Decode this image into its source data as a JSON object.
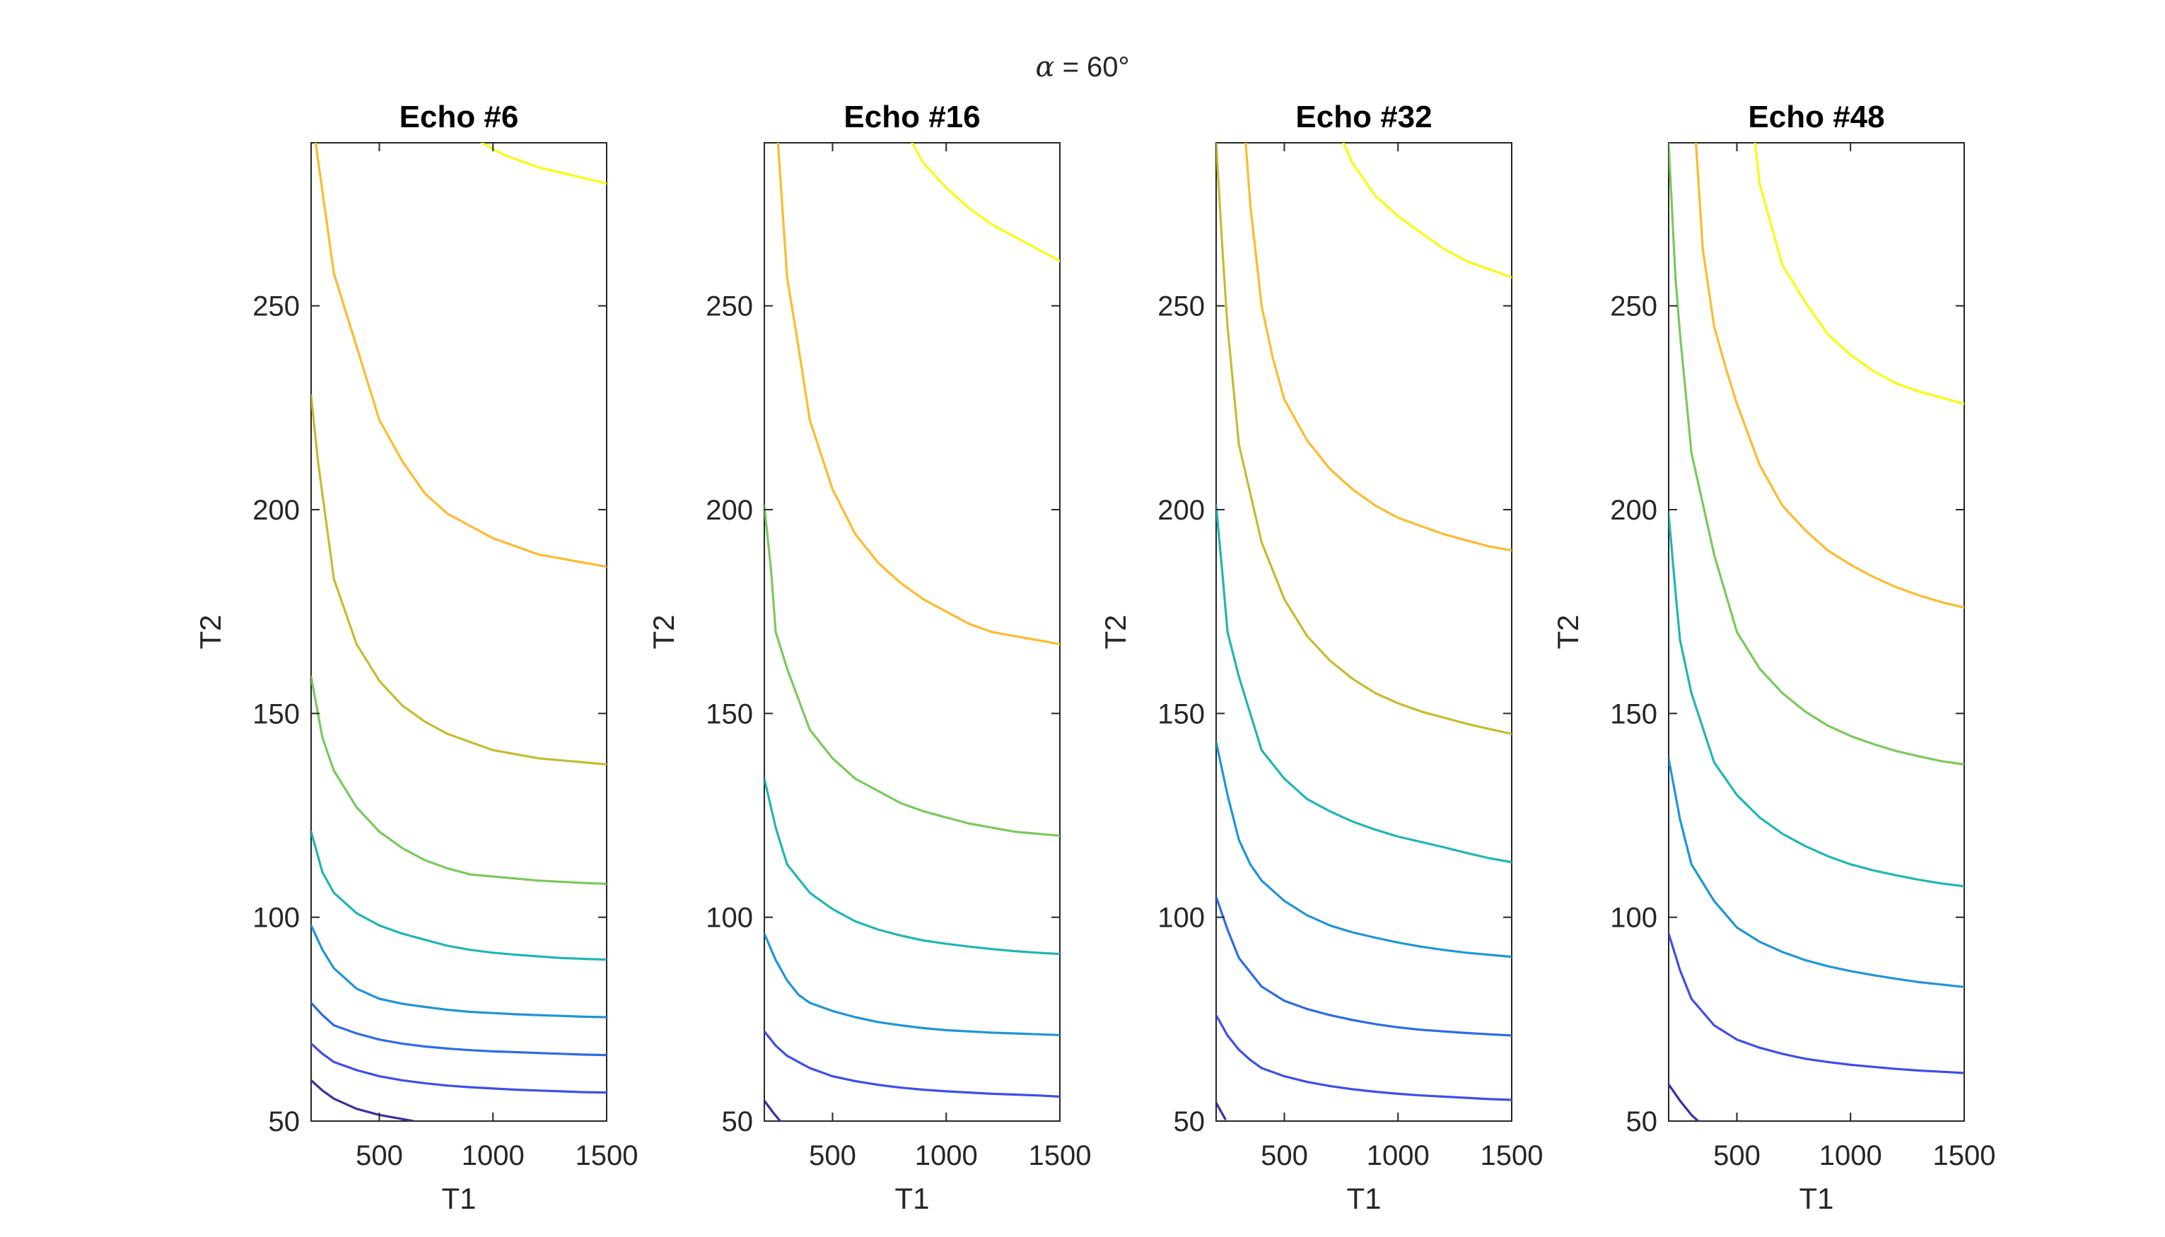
{
  "figure": {
    "suptitle_symbol": "α",
    "suptitle_rest": " = 60°"
  },
  "chart_data": [
    {
      "type": "line",
      "title": "Echo #6",
      "xlabel": "T1",
      "ylabel": "T2",
      "xlim": [
        200,
        1500
      ],
      "ylim": [
        50,
        290
      ],
      "xticks": [
        500,
        1000,
        1500
      ],
      "yticks": [
        50,
        100,
        150,
        200,
        250
      ],
      "grid": false,
      "series": [
        {
          "color": "#f9fb0e",
          "x": [
            950,
            1050,
            1200,
            1350,
            1500
          ],
          "y": [
            290,
            287,
            284,
            282,
            280
          ]
        },
        {
          "color": "#fdbb2d",
          "x": [
            220,
            250,
            300,
            400,
            500,
            600,
            700,
            800,
            900,
            1000,
            1100,
            1200,
            1300,
            1400,
            1500
          ],
          "y": [
            290,
            278,
            258,
            240,
            222,
            212,
            204,
            199,
            196,
            193,
            191,
            189,
            188,
            187,
            186
          ]
        },
        {
          "color": "#c6bc2f",
          "x": [
            200,
            230,
            300,
            400,
            500,
            600,
            700,
            800,
            900,
            1000,
            1100,
            1200,
            1300,
            1400,
            1500
          ],
          "y": [
            228,
            212,
            183,
            167,
            158,
            152,
            148,
            145,
            143,
            141,
            140,
            139,
            138.5,
            138,
            137.5
          ]
        },
        {
          "color": "#7ac95c",
          "x": [
            200,
            250,
            300,
            400,
            500,
            600,
            700,
            800,
            900,
            1000,
            1100,
            1200,
            1300,
            1400,
            1500
          ],
          "y": [
            159,
            144,
            136,
            127,
            121,
            117,
            114,
            112,
            110.5,
            110,
            109.5,
            109,
            108.7,
            108.4,
            108.2
          ]
        },
        {
          "color": "#1fb6b5",
          "x": [
            200,
            250,
            300,
            400,
            500,
            600,
            700,
            800,
            900,
            1000,
            1100,
            1200,
            1300,
            1400,
            1500
          ],
          "y": [
            121,
            111,
            106,
            101,
            98,
            96,
            94.5,
            93,
            92,
            91.3,
            90.8,
            90.4,
            90,
            89.8,
            89.6
          ]
        },
        {
          "color": "#1f95d8",
          "x": [
            200,
            250,
            300,
            400,
            500,
            600,
            700,
            800,
            900,
            1000,
            1100,
            1200,
            1300,
            1400,
            1500
          ],
          "y": [
            98,
            92,
            87.5,
            82.5,
            80,
            78.8,
            78,
            77.3,
            76.8,
            76.5,
            76.2,
            76,
            75.8,
            75.6,
            75.5
          ]
        },
        {
          "color": "#2c6ce6",
          "x": [
            200,
            250,
            300,
            400,
            500,
            600,
            700,
            800,
            900,
            1000,
            1100,
            1200,
            1300,
            1400,
            1500
          ],
          "y": [
            79,
            76,
            73.5,
            71.5,
            70,
            69,
            68.3,
            67.8,
            67.4,
            67.1,
            66.9,
            66.7,
            66.5,
            66.3,
            66.2
          ]
        },
        {
          "color": "#3e4ee8",
          "x": [
            200,
            250,
            300,
            400,
            500,
            600,
            700,
            800,
            900,
            1000,
            1100,
            1200,
            1300,
            1400,
            1500
          ],
          "y": [
            69,
            66.5,
            64.5,
            62.5,
            61,
            60,
            59.3,
            58.7,
            58.3,
            58,
            57.7,
            57.5,
            57.3,
            57.1,
            57
          ]
        },
        {
          "color": "#3c2ea0",
          "x": [
            200,
            250,
            300,
            400,
            500,
            600,
            650
          ],
          "y": [
            60,
            57.5,
            55.5,
            53,
            51.5,
            50.5,
            50
          ]
        }
      ]
    },
    {
      "type": "line",
      "title": "Echo #16",
      "xlabel": "T1",
      "ylabel": "T2",
      "xlim": [
        200,
        1500
      ],
      "ylim": [
        50,
        290
      ],
      "xticks": [
        500,
        1000,
        1500
      ],
      "yticks": [
        50,
        100,
        150,
        200,
        250
      ],
      "grid": false,
      "series": [
        {
          "color": "#f9fb0e",
          "x": [
            850,
            900,
            1000,
            1100,
            1200,
            1300,
            1400,
            1500
          ],
          "y": [
            290,
            285,
            279,
            274,
            270,
            267,
            264,
            261
          ]
        },
        {
          "color": "#fdbb2d",
          "x": [
            260,
            300,
            350,
            400,
            500,
            600,
            700,
            800,
            900,
            1000,
            1100,
            1200,
            1300,
            1400,
            1500
          ],
          "y": [
            290,
            257,
            240,
            222,
            205,
            194,
            187,
            182,
            178,
            175,
            172,
            170,
            169,
            168,
            167
          ]
        },
        {
          "color": "#7ac95c",
          "x": [
            200,
            230,
            250,
            300,
            400,
            500,
            600,
            700,
            800,
            900,
            1000,
            1100,
            1200,
            1300,
            1400,
            1500
          ],
          "y": [
            201,
            185,
            170,
            161,
            146,
            139,
            134,
            131,
            128,
            126,
            124.5,
            123,
            122,
            121,
            120.5,
            120
          ]
        },
        {
          "color": "#1fb6b5",
          "x": [
            200,
            250,
            300,
            400,
            500,
            600,
            700,
            800,
            900,
            1000,
            1100,
            1200,
            1300,
            1400,
            1500
          ],
          "y": [
            134,
            122,
            113,
            106,
            102,
            99,
            97,
            95.5,
            94.3,
            93.5,
            92.8,
            92.2,
            91.7,
            91.3,
            91
          ]
        },
        {
          "color": "#1f95d8",
          "x": [
            200,
            250,
            300,
            350,
            400,
            500,
            600,
            700,
            800,
            900,
            1000,
            1100,
            1200,
            1300,
            1400,
            1500
          ],
          "y": [
            96,
            89.5,
            84.5,
            81,
            79,
            77,
            75.5,
            74.3,
            73.5,
            72.8,
            72.3,
            72,
            71.7,
            71.5,
            71.3,
            71.1
          ]
        },
        {
          "color": "#3e4ee8",
          "x": [
            200,
            250,
            300,
            400,
            500,
            600,
            700,
            800,
            900,
            1000,
            1100,
            1200,
            1300,
            1400,
            1500
          ],
          "y": [
            72,
            68.5,
            66,
            63,
            61,
            59.8,
            58.9,
            58.2,
            57.7,
            57.3,
            57,
            56.7,
            56.5,
            56.3,
            56
          ]
        },
        {
          "color": "#3c2ea0",
          "x": [
            200,
            240,
            270
          ],
          "y": [
            55,
            52,
            50
          ]
        }
      ]
    },
    {
      "type": "line",
      "title": "Echo #32",
      "xlabel": "T1",
      "ylabel": "T2",
      "xlim": [
        200,
        1500
      ],
      "ylim": [
        50,
        290
      ],
      "xticks": [
        500,
        1000,
        1500
      ],
      "yticks": [
        50,
        100,
        150,
        200,
        250
      ],
      "grid": false,
      "series": [
        {
          "color": "#f9fb0e",
          "x": [
            760,
            800,
            900,
            1000,
            1100,
            1200,
            1300,
            1400,
            1500
          ],
          "y": [
            290,
            285,
            277,
            272,
            268,
            264,
            261,
            259,
            257
          ]
        },
        {
          "color": "#fdbb2d",
          "x": [
            330,
            350,
            400,
            450,
            500,
            600,
            700,
            800,
            900,
            1000,
            1100,
            1200,
            1300,
            1400,
            1500
          ],
          "y": [
            290,
            275,
            250,
            237,
            227,
            217,
            210,
            205,
            201,
            198,
            196,
            194,
            192.5,
            191,
            190
          ]
        },
        {
          "color": "#c6bc2f",
          "x": [
            200,
            230,
            250,
            300,
            400,
            500,
            600,
            700,
            800,
            900,
            1000,
            1100,
            1200,
            1300,
            1400,
            1500
          ],
          "y": [
            290,
            262,
            245,
            216,
            192,
            178,
            169,
            163,
            158.5,
            155,
            152.5,
            150.5,
            149,
            147.5,
            146.2,
            145
          ]
        },
        {
          "color": "#1fb6b5",
          "x": [
            200,
            230,
            250,
            300,
            400,
            500,
            600,
            700,
            800,
            900,
            1000,
            1100,
            1200,
            1300,
            1400,
            1500
          ],
          "y": [
            201,
            183,
            170,
            159,
            141,
            134,
            129,
            126,
            123.5,
            121.5,
            119.8,
            118.5,
            117.2,
            115.8,
            114.5,
            113.5
          ]
        },
        {
          "color": "#1f95d8",
          "x": [
            200,
            250,
            300,
            350,
            400,
            500,
            600,
            700,
            800,
            900,
            1000,
            1100,
            1200,
            1300,
            1400,
            1500
          ],
          "y": [
            143,
            130,
            119,
            113,
            109,
            104,
            100.5,
            98,
            96.3,
            95,
            93.8,
            92.8,
            92,
            91.3,
            90.8,
            90.3
          ]
        },
        {
          "color": "#2c6ce6",
          "x": [
            200,
            250,
            300,
            400,
            500,
            600,
            700,
            800,
            900,
            1000,
            1100,
            1200,
            1300,
            1400,
            1500
          ],
          "y": [
            105,
            97,
            90,
            83,
            79.5,
            77.5,
            76,
            74.8,
            73.8,
            73,
            72.4,
            72,
            71.6,
            71.3,
            71
          ]
        },
        {
          "color": "#3e4ee8",
          "x": [
            200,
            250,
            300,
            350,
            400,
            500,
            600,
            700,
            800,
            900,
            1000,
            1100,
            1200,
            1300,
            1400,
            1500
          ],
          "y": [
            76,
            71,
            67.5,
            65,
            63,
            61,
            59.6,
            58.6,
            57.8,
            57.2,
            56.7,
            56.3,
            56,
            55.7,
            55.4,
            55.2
          ]
        },
        {
          "color": "#3c2ea0",
          "x": [
            200,
            220,
            240
          ],
          "y": [
            54.5,
            52.5,
            50.5
          ]
        }
      ]
    },
    {
      "type": "line",
      "title": "Echo #48",
      "xlabel": "T1",
      "ylabel": "T2",
      "xlim": [
        200,
        1500
      ],
      "ylim": [
        50,
        290
      ],
      "xticks": [
        500,
        1000,
        1500
      ],
      "yticks": [
        50,
        100,
        150,
        200,
        250
      ],
      "grid": false,
      "series": [
        {
          "color": "#f9fb0e",
          "x": [
            580,
            600,
            700,
            800,
            900,
            1000,
            1100,
            1200,
            1300,
            1400,
            1500
          ],
          "y": [
            290,
            280,
            260,
            251,
            243,
            238,
            234,
            231,
            229,
            227.5,
            226
          ]
        },
        {
          "color": "#fdbb2d",
          "x": [
            320,
            350,
            400,
            450,
            500,
            600,
            700,
            800,
            900,
            1000,
            1100,
            1200,
            1300,
            1400,
            1500
          ],
          "y": [
            290,
            264,
            245,
            235,
            226,
            211,
            201,
            195,
            190,
            186.5,
            183.5,
            181,
            179,
            177.3,
            176
          ]
        },
        {
          "color": "#7ac95c",
          "x": [
            200,
            230,
            250,
            300,
            400,
            500,
            600,
            700,
            800,
            900,
            1000,
            1100,
            1200,
            1300,
            1400,
            1500
          ],
          "y": [
            290,
            257,
            243,
            214,
            189,
            170,
            161,
            155,
            150.5,
            147,
            144.5,
            142.5,
            140.8,
            139.5,
            138.3,
            137.5
          ]
        },
        {
          "color": "#1fb6b5",
          "x": [
            200,
            230,
            250,
            300,
            400,
            500,
            600,
            700,
            800,
            900,
            1000,
            1100,
            1200,
            1300,
            1400,
            1500
          ],
          "y": [
            199,
            180,
            168,
            155,
            138,
            130,
            124.5,
            120.5,
            117.5,
            115,
            113,
            111.5,
            110.3,
            109.2,
            108.3,
            107.6
          ]
        },
        {
          "color": "#1f95d8",
          "x": [
            200,
            250,
            300,
            400,
            500,
            600,
            700,
            800,
            900,
            1000,
            1100,
            1200,
            1300,
            1400,
            1500
          ],
          "y": [
            139,
            124,
            113,
            104,
            97.5,
            94,
            91.5,
            89.5,
            88,
            86.8,
            85.8,
            84.9,
            84.1,
            83.5,
            82.9
          ]
        },
        {
          "color": "#3e4ee8",
          "x": [
            200,
            250,
            300,
            400,
            500,
            600,
            700,
            800,
            900,
            1000,
            1100,
            1200,
            1300,
            1400,
            1500
          ],
          "y": [
            96,
            87,
            80,
            73.5,
            70,
            68,
            66.5,
            65.3,
            64.5,
            63.8,
            63.3,
            62.8,
            62.4,
            62.1,
            61.8
          ]
        },
        {
          "color": "#3c2ea0",
          "x": [
            200,
            250,
            300,
            330
          ],
          "y": [
            59,
            55,
            51.5,
            50
          ]
        }
      ]
    }
  ]
}
